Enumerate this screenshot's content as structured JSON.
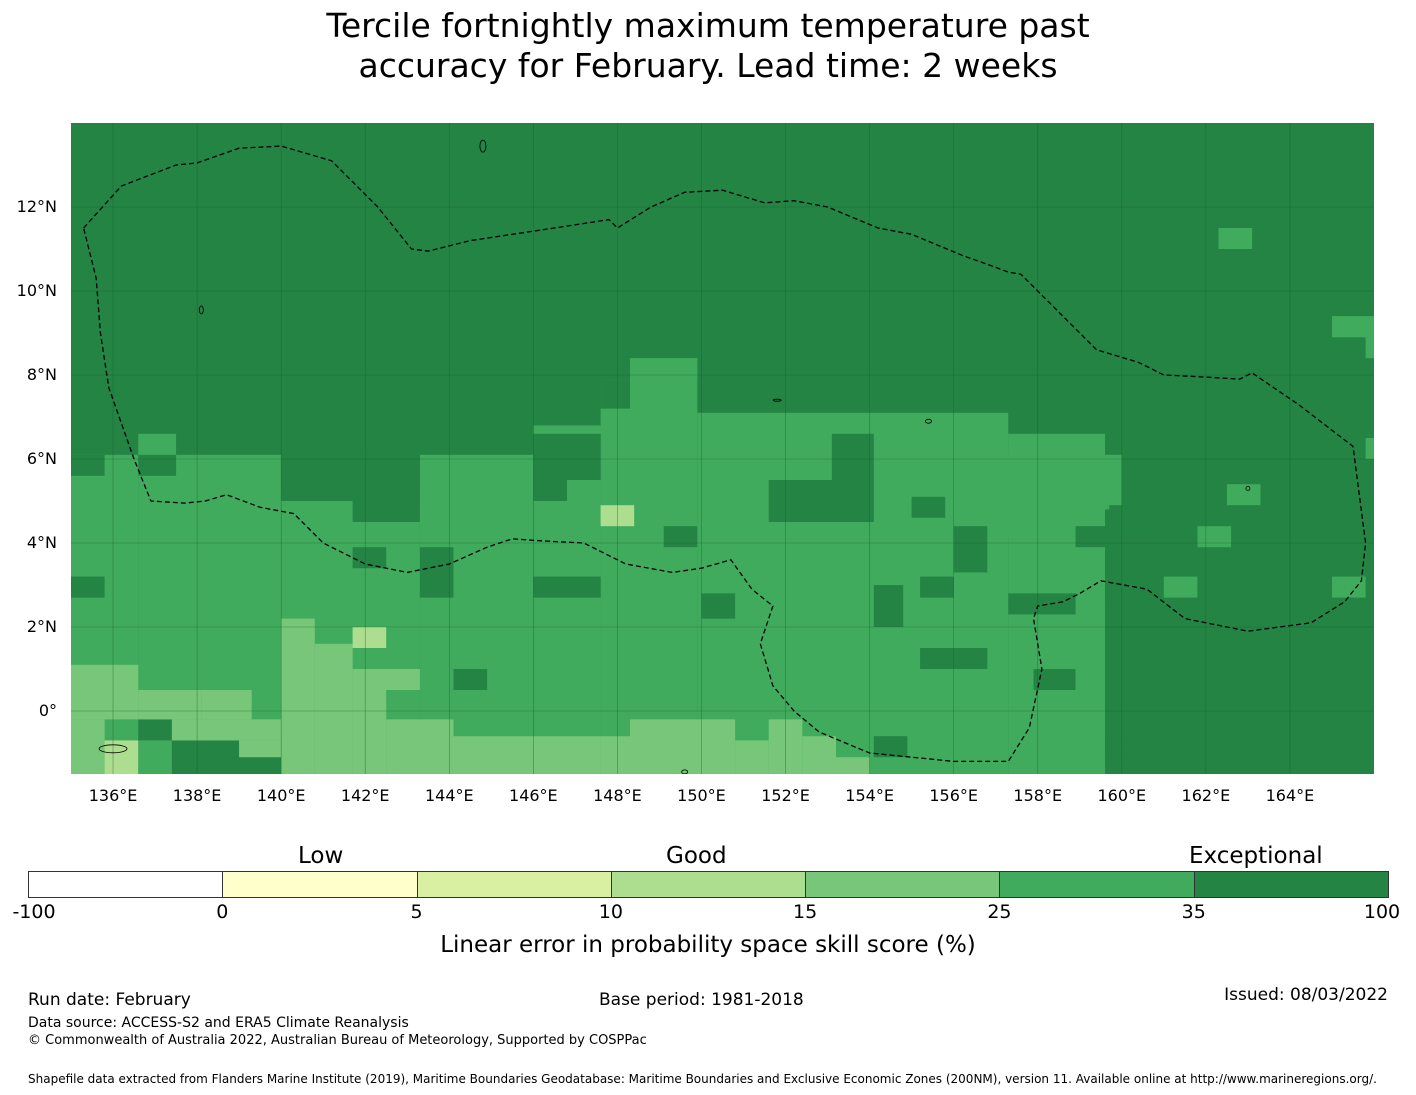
{
  "title": {
    "line1": "Tercile fortnightly maximum temperature past",
    "line2": "accuracy for February. Lead time: 2 weeks"
  },
  "map": {
    "lon_range": [
      135,
      166
    ],
    "lat_range": [
      -1.5,
      14
    ],
    "lat_ticks": [
      {
        "value": 12,
        "label": "12°N"
      },
      {
        "value": 10,
        "label": "10°N"
      },
      {
        "value": 8,
        "label": "8°N"
      },
      {
        "value": 6,
        "label": "6°N"
      },
      {
        "value": 4,
        "label": "4°N"
      },
      {
        "value": 2,
        "label": "2°N"
      },
      {
        "value": 0,
        "label": "0°"
      }
    ],
    "lon_ticks": [
      {
        "value": 136,
        "label": "136°E"
      },
      {
        "value": 138,
        "label": "138°E"
      },
      {
        "value": 140,
        "label": "140°E"
      },
      {
        "value": 142,
        "label": "142°E"
      },
      {
        "value": 144,
        "label": "144°E"
      },
      {
        "value": 146,
        "label": "146°E"
      },
      {
        "value": 148,
        "label": "148°E"
      },
      {
        "value": 150,
        "label": "150°E"
      },
      {
        "value": 152,
        "label": "152°E"
      },
      {
        "value": 154,
        "label": "154°E"
      },
      {
        "value": 156,
        "label": "156°E"
      },
      {
        "value": 158,
        "label": "158°E"
      },
      {
        "value": 160,
        "label": "160°E"
      },
      {
        "value": 162,
        "label": "162°E"
      },
      {
        "value": 164,
        "label": "164°E"
      }
    ],
    "class_colors": {
      "c10": "#addd8e",
      "c15": "#78c679",
      "c25": "#41ab5d",
      "c35": "#238443"
    },
    "region_boundary_lonlat": [
      [
        135.3,
        11.5
      ],
      [
        136.2,
        12.5
      ],
      [
        137.5,
        13.0
      ],
      [
        138.0,
        13.05
      ],
      [
        139.0,
        13.4
      ],
      [
        140.0,
        13.45
      ],
      [
        141.2,
        13.1
      ],
      [
        142.3,
        12.0
      ],
      [
        143.1,
        11.0
      ],
      [
        143.5,
        10.95
      ],
      [
        144.5,
        11.2
      ],
      [
        146.5,
        11.5
      ],
      [
        147.8,
        11.7
      ],
      [
        148.0,
        11.5
      ],
      [
        148.8,
        12.0
      ],
      [
        149.6,
        12.35
      ],
      [
        150.5,
        12.4
      ],
      [
        151.5,
        12.1
      ],
      [
        152.2,
        12.15
      ],
      [
        153.0,
        12.0
      ],
      [
        154.2,
        11.5
      ],
      [
        155.0,
        11.35
      ],
      [
        156.2,
        10.85
      ],
      [
        156.9,
        10.6
      ],
      [
        157.3,
        10.45
      ],
      [
        157.6,
        10.4
      ],
      [
        158.2,
        9.8
      ],
      [
        159.4,
        8.6
      ],
      [
        160.4,
        8.3
      ],
      [
        161.0,
        8.0
      ],
      [
        162.0,
        7.95
      ],
      [
        162.8,
        7.9
      ],
      [
        163.1,
        8.05
      ],
      [
        164.2,
        7.3
      ],
      [
        165.5,
        6.3
      ],
      [
        165.8,
        4.0
      ],
      [
        165.7,
        3.1
      ],
      [
        165.3,
        2.6
      ],
      [
        164.5,
        2.1
      ],
      [
        163.0,
        1.9
      ],
      [
        161.5,
        2.2
      ],
      [
        160.6,
        2.9
      ],
      [
        159.5,
        3.1
      ],
      [
        159.0,
        2.8
      ],
      [
        158.6,
        2.6
      ],
      [
        158.0,
        2.5
      ],
      [
        157.9,
        2.2
      ],
      [
        158.1,
        1.0
      ],
      [
        157.8,
        -0.4
      ],
      [
        157.3,
        -1.2
      ],
      [
        156.0,
        -1.2
      ],
      [
        154.0,
        -1.0
      ],
      [
        152.8,
        -0.5
      ],
      [
        152.2,
        0.0
      ],
      [
        151.7,
        0.6
      ],
      [
        151.4,
        1.6
      ],
      [
        151.7,
        2.5
      ],
      [
        151.2,
        2.9
      ],
      [
        150.7,
        3.6
      ],
      [
        150.0,
        3.4
      ],
      [
        149.3,
        3.3
      ],
      [
        148.2,
        3.5
      ],
      [
        147.2,
        4.0
      ],
      [
        146.2,
        4.05
      ],
      [
        145.5,
        4.1
      ],
      [
        144.9,
        3.9
      ],
      [
        144.0,
        3.5
      ],
      [
        143.0,
        3.3
      ],
      [
        142.0,
        3.5
      ],
      [
        141.0,
        4.0
      ],
      [
        140.3,
        4.7
      ],
      [
        139.5,
        4.85
      ],
      [
        138.7,
        5.15
      ],
      [
        138.2,
        5.0
      ],
      [
        137.7,
        4.95
      ],
      [
        136.9,
        5.0
      ],
      [
        136.5,
        6.0
      ],
      [
        135.9,
        7.7
      ],
      [
        135.7,
        9.0
      ],
      [
        135.6,
        10.3
      ],
      [
        135.3,
        11.5
      ]
    ]
  },
  "colorbar": {
    "categories": [
      "Low",
      "Good",
      "Exceptional"
    ],
    "ticks": [
      "-100",
      "0",
      "5",
      "10",
      "15",
      "25",
      "35",
      "100"
    ],
    "colors": [
      "#ffffff",
      "#ffffcc",
      "#d9f0a3",
      "#addd8e",
      "#78c679",
      "#41ab5d",
      "#238443"
    ],
    "label": "Linear error in probability space skill score (%)"
  },
  "footer": {
    "run_date": "Run date: February",
    "base_period": "Base period: 1981-2018",
    "issued": "Issued: 08/03/2022",
    "data_source": "Data source: ACCESS-S2 and ERA5 Climate Reanalysis",
    "copyright": "© Commonwealth of Australia 2022, Australian Bureau of Meteorology, Supported by COSPPac",
    "shapefile": "Shapefile data extracted from Flanders Marine Institute (2019), Maritime Boundaries Geodatabase: Maritime Boundaries and Exclusive Economic Zones (200NM), version 11. Available online at http://www.marineregions.org/."
  }
}
